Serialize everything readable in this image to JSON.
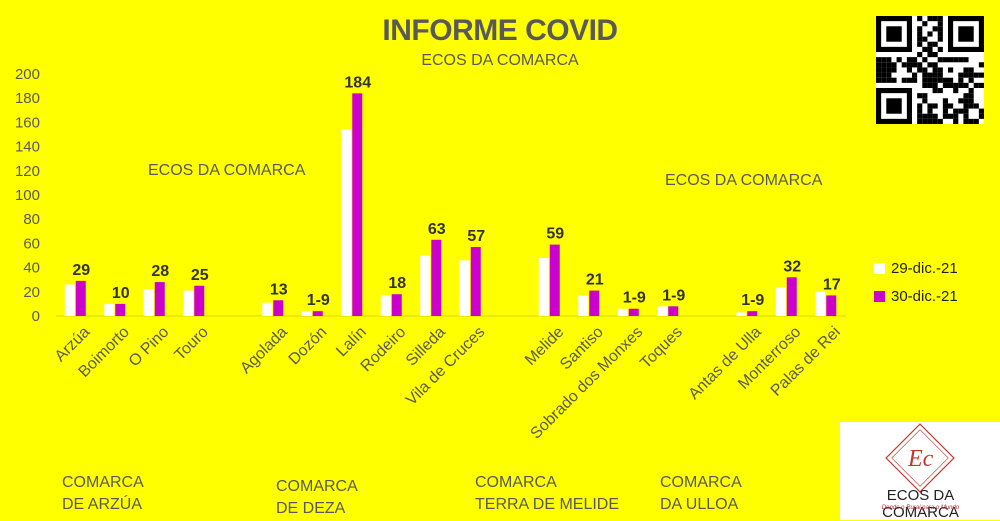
{
  "title": "INFORME COVID",
  "subtitle": "ECOS DA COMARCA",
  "watermarks": [
    "ECOS DA COMARCA",
    "ECOS DA COMARCA"
  ],
  "logo_text": "ECOS DA COMARCA",
  "logo_tagline": "Dende o Rural para o Mundo",
  "groups": [
    {
      "line1": "COMARCA",
      "line2": "DE ARZÚA"
    },
    {
      "line1": "COMARCA",
      "line2": "DE DEZA"
    },
    {
      "line1": "COMARCA",
      "line2": "TERRA DE MELIDE"
    },
    {
      "line1": "COMARCA",
      "line2": "DA ULLOA"
    }
  ],
  "colors": {
    "background": "#ffff00",
    "series1": "#ffffff",
    "series2": "#cc00cc",
    "text": "#595959"
  },
  "chart_data": {
    "type": "bar",
    "ylim": [
      0,
      200
    ],
    "yticks": [
      0,
      20,
      40,
      60,
      80,
      100,
      120,
      140,
      160,
      180,
      200
    ],
    "grid": false,
    "legend_position": "right",
    "categories": [
      "Arzúa",
      "Boimorto",
      "O Pino",
      "Touro",
      "",
      "Agolada",
      "Dozón",
      "Lalín",
      "Rodeiro",
      "Silleda",
      "Vila de Cruces",
      "",
      "Melide",
      "Santiso",
      "Sobrado dos Monxes",
      "Toques",
      "",
      "Antas de Ulla",
      "Monterroso",
      "Palas de Rei"
    ],
    "series": [
      {
        "name": "29-dic.-21",
        "values": [
          26,
          10,
          22,
          21,
          null,
          11,
          4,
          154,
          17,
          50,
          46,
          null,
          48,
          17,
          6,
          8,
          null,
          3,
          24,
          20
        ]
      },
      {
        "name": "30-dic.-21",
        "values": [
          29,
          10,
          28,
          25,
          null,
          13,
          4,
          184,
          18,
          63,
          57,
          null,
          59,
          21,
          6,
          8,
          null,
          4,
          32,
          17
        ]
      }
    ],
    "data_labels": [
      "29",
      "10",
      "28",
      "25",
      "",
      "13",
      "1-9",
      "184",
      "18",
      "63",
      "57",
      "",
      "59",
      "21",
      "1-9",
      "1-9",
      "",
      "1-9",
      "32",
      "17"
    ]
  }
}
